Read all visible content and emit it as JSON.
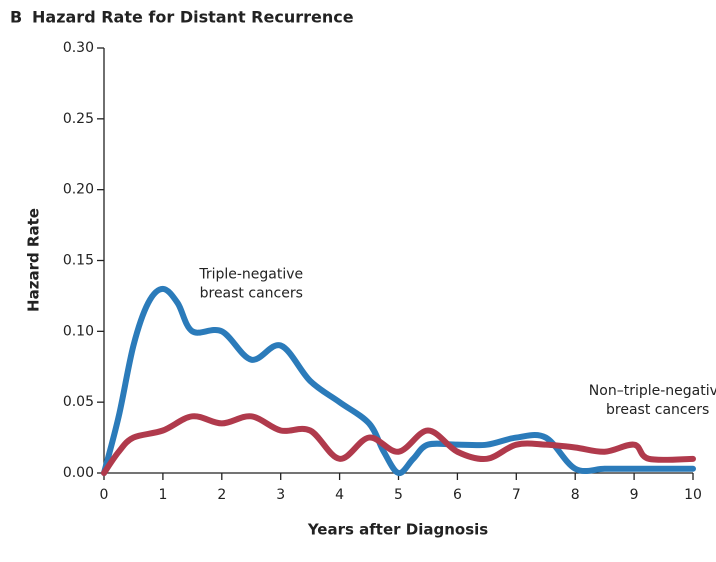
{
  "chart_data": {
    "type": "line",
    "panel": "B",
    "title": "Hazard Rate for Distant Recurrence",
    "xlabel": "Years after Diagnosis",
    "ylabel": "Hazard Rate",
    "xlim": [
      0,
      10
    ],
    "ylim": [
      0,
      0.3
    ],
    "xticks": [
      0,
      1,
      2,
      3,
      4,
      5,
      6,
      7,
      8,
      9,
      10
    ],
    "yticks": [
      {
        "value": 0,
        "label": "0.00"
      },
      {
        "value": 0.05,
        "label": "0.05"
      },
      {
        "value": 0.1,
        "label": "0.10"
      },
      {
        "value": 0.15,
        "label": "0.15"
      },
      {
        "value": 0.2,
        "label": "0.20"
      },
      {
        "value": 0.25,
        "label": "0.25"
      },
      {
        "value": 0.3,
        "label": "0.30"
      }
    ],
    "series": [
      {
        "name": "Triple-negative breast cancers",
        "color": "#2b7bba",
        "x": [
          0,
          0.25,
          0.5,
          0.75,
          1,
          1.25,
          1.5,
          2,
          2.5,
          3,
          3.5,
          4,
          4.5,
          4.75,
          5,
          5.25,
          5.5,
          6,
          6.5,
          7,
          7.5,
          8,
          8.5,
          9,
          10
        ],
        "values": [
          0,
          0.04,
          0.09,
          0.12,
          0.13,
          0.12,
          0.1,
          0.1,
          0.08,
          0.09,
          0.065,
          0.05,
          0.035,
          0.015,
          0,
          0.01,
          0.02,
          0.02,
          0.02,
          0.025,
          0.025,
          0.003,
          0.003,
          0.003,
          0.003
        ]
      },
      {
        "name": "Non–triple-negative breast cancers",
        "color": "#b03a4c",
        "x": [
          0,
          0.25,
          0.5,
          1,
          1.5,
          2,
          2.5,
          3,
          3.5,
          4,
          4.5,
          5,
          5.5,
          6,
          6.5,
          7,
          7.5,
          8,
          8.5,
          9,
          9.25,
          10
        ],
        "values": [
          0,
          0.015,
          0.025,
          0.03,
          0.04,
          0.035,
          0.04,
          0.03,
          0.03,
          0.01,
          0.025,
          0.015,
          0.03,
          0.015,
          0.01,
          0.02,
          0.02,
          0.018,
          0.015,
          0.02,
          0.01,
          0.01
        ]
      }
    ],
    "annotations": [
      {
        "lines": [
          "Triple-negative",
          "breast cancers"
        ],
        "x": 2.5,
        "y": 0.14
      },
      {
        "lines": [
          "Non–triple-negative",
          "breast cancers"
        ],
        "x": 9.4,
        "y": 0.058
      }
    ]
  }
}
